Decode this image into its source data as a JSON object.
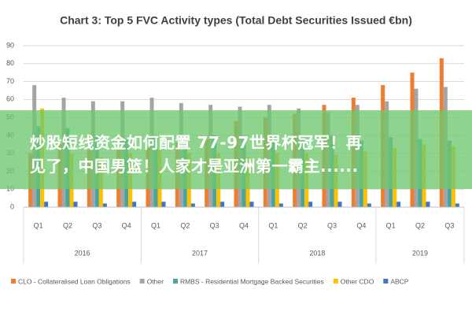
{
  "chart_data": {
    "type": "bar",
    "title": "Chart 3: Top 5 FVC Activity types (Total Debt Securities Issued €bn)",
    "categories": [
      "Q1",
      "Q2",
      "Q3",
      "Q4",
      "Q1",
      "Q2",
      "Q3",
      "Q4",
      "Q1",
      "Q2",
      "Q3",
      "Q4",
      "Q1",
      "Q2",
      "Q3"
    ],
    "groups": [
      "2016",
      "2017",
      "2018",
      "2019"
    ],
    "series": [
      {
        "name": "CLO - Collateralised Loan Obligations",
        "color": "#ed7d31",
        "values": [
          30,
          35,
          32,
          33,
          33,
          36,
          38,
          48,
          50,
          52,
          57,
          61,
          68,
          75,
          83
        ]
      },
      {
        "name": "Other",
        "color": "#a5a5a5",
        "values": [
          68,
          61,
          59,
          59,
          61,
          58,
          57,
          56,
          57,
          55,
          53,
          57,
          59,
          66,
          67
        ]
      },
      {
        "name": "RMBS - Residential Mortgage Backed Securities",
        "color": "#4aa3a0",
        "values": [
          45,
          44,
          40,
          38,
          40,
          37,
          40,
          38,
          40,
          38,
          40,
          37,
          39,
          38,
          37
        ]
      },
      {
        "name": "Other CDO",
        "color": "#ffc000",
        "values": [
          55,
          30,
          28,
          30,
          32,
          30,
          30,
          28,
          30,
          30,
          29,
          31,
          33,
          35,
          34
        ]
      },
      {
        "name": "ABCP",
        "color": "#4472c4",
        "values": [
          3,
          3,
          2,
          3,
          3,
          2,
          3,
          3,
          2,
          3,
          3,
          2,
          3,
          3,
          2
        ]
      }
    ],
    "ylim": [
      0,
      90
    ],
    "yticks": [
      0,
      10,
      20,
      30,
      40,
      50,
      60,
      70,
      80,
      90
    ],
    "grid": true,
    "legend": "bottom"
  },
  "overlay": {
    "lines": [
      "炒股短线资金如何配置 77-97世界杯冠军！再",
      "见了，中国男篮！人家才是亚洲第一霸主......"
    ]
  }
}
